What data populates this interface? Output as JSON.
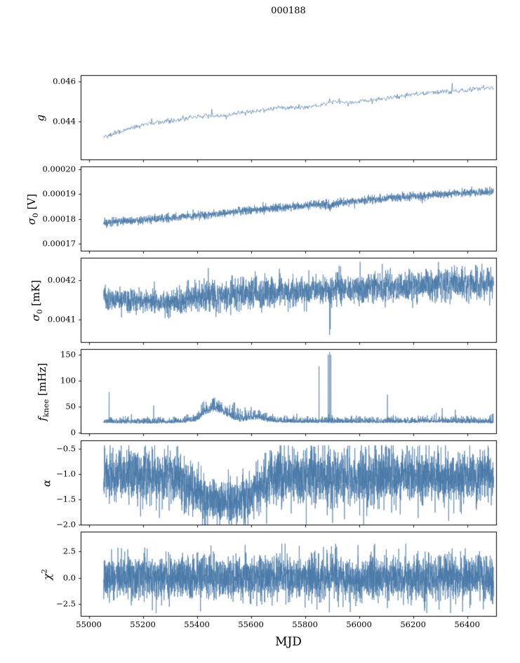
{
  "title": "000188",
  "xlabel": "MJD",
  "line_color": "#4878a8",
  "axis_color": "#000000",
  "x_axis": {
    "lim": [
      54970,
      56510
    ],
    "ticks": [
      {
        "v": 55000,
        "label": "55000"
      },
      {
        "v": 55200,
        "label": "55200"
      },
      {
        "v": 55400,
        "label": "55400"
      },
      {
        "v": 55600,
        "label": "55600"
      },
      {
        "v": 55800,
        "label": "55800"
      },
      {
        "v": 56000,
        "label": "56000"
      },
      {
        "v": 56200,
        "label": "56200"
      },
      {
        "v": 56400,
        "label": "56400"
      }
    ]
  },
  "chart_data": [
    {
      "type": "line",
      "name": "gain",
      "ylabel": {
        "var": "g",
        "sub": "",
        "sup": "",
        "unit": ""
      },
      "ylim": [
        0.0421,
        0.0463
      ],
      "yticks": [
        {
          "v": 0.044,
          "label": "0.044"
        },
        {
          "v": 0.046,
          "label": "0.046"
        }
      ],
      "x_range": [
        55055,
        56498
      ],
      "n_points": 650,
      "seed": 1,
      "mode": "normal",
      "trend": {
        "x": [
          55055,
          55120,
          55200,
          55280,
          55360,
          55430,
          55480,
          55550,
          55620,
          55700,
          55780,
          55860,
          55900,
          55960,
          56040,
          56120,
          56200,
          56280,
          56360,
          56440,
          56498
        ],
        "y": [
          0.04325,
          0.04355,
          0.04385,
          0.044,
          0.04415,
          0.0443,
          0.04425,
          0.0444,
          0.04455,
          0.0447,
          0.0447,
          0.0448,
          0.045,
          0.04495,
          0.04505,
          0.0452,
          0.04535,
          0.04545,
          0.0455,
          0.04565,
          0.0457
        ]
      },
      "noise": 6e-05,
      "spikes": [
        {
          "x": 55455,
          "y": 0.04462
        },
        {
          "x": 55890,
          "y": 0.04515
        },
        {
          "x": 56345,
          "y": 0.0459
        }
      ]
    },
    {
      "type": "line",
      "name": "sigma0_V",
      "ylabel": {
        "var": "σ",
        "sub": "0",
        "sup": "",
        "unit": " [V]"
      },
      "ylim": [
        0.000167,
        0.000201
      ],
      "yticks": [
        {
          "v": 0.00017,
          "label": "0.00017"
        },
        {
          "v": 0.00018,
          "label": "0.00018"
        },
        {
          "v": 0.00019,
          "label": "0.00019"
        },
        {
          "v": 0.0002,
          "label": "0.00020"
        }
      ],
      "x_range": [
        55055,
        56498
      ],
      "n_points": 2600,
      "seed": 2,
      "mode": "normal",
      "trend": {
        "x": [
          55055,
          55150,
          55250,
          55350,
          55450,
          55550,
          55650,
          55750,
          55850,
          55880,
          55895,
          55910,
          55960,
          56050,
          56150,
          56250,
          56350,
          56450,
          56498
        ],
        "y": [
          0.0001785,
          0.0001793,
          0.00018,
          0.0001808,
          0.0001818,
          0.000183,
          0.000184,
          0.0001849,
          0.0001858,
          0.000186,
          0.0001846,
          0.0001862,
          0.0001868,
          0.0001877,
          0.0001886,
          0.0001895,
          0.0001902,
          0.0001907,
          0.0001908
        ]
      },
      "noise": 8e-07,
      "spikes": [
        {
          "x": 55893,
          "y": 0.000183
        }
      ]
    },
    {
      "type": "line",
      "name": "sigma0_mK",
      "ylabel": {
        "var": "σ",
        "sub": "0",
        "sup": "",
        "unit": " [mK]"
      },
      "ylim": [
        0.00404,
        0.004257
      ],
      "yticks": [
        {
          "v": 0.0041,
          "label": "0.0041"
        },
        {
          "v": 0.0042,
          "label": "0.0042"
        }
      ],
      "x_range": [
        55055,
        56498
      ],
      "n_points": 2800,
      "seed": 3,
      "mode": "normal",
      "trend": {
        "x": [
          55055,
          55150,
          55250,
          55330,
          55400,
          55450,
          55520,
          55600,
          55680,
          55760,
          55840,
          55900,
          55960,
          56040,
          56120,
          56200,
          56280,
          56360,
          56440,
          56498
        ],
        "y": [
          0.004152,
          0.004148,
          0.004144,
          0.004146,
          0.004158,
          0.00416,
          0.004162,
          0.004168,
          0.00417,
          0.004168,
          0.004172,
          0.004176,
          0.004178,
          0.004182,
          0.004184,
          0.004186,
          0.004188,
          0.00419,
          0.004192,
          0.004194
        ]
      },
      "noise": {
        "x": [
          55055,
          55350,
          55420,
          55650,
          55700,
          56000,
          56200,
          56498
        ],
        "amp": [
          1.5e-05,
          1.6e-05,
          2.1e-05,
          2.1e-05,
          1.8e-05,
          1.9e-05,
          2e-05,
          2.1e-05
        ]
      },
      "spikes": [
        {
          "x": 55891,
          "y": 0.00406
        },
        {
          "x": 55894,
          "y": 0.004075
        }
      ]
    },
    {
      "type": "line",
      "name": "f_knee",
      "ylabel": {
        "var": "f",
        "sub": "knee",
        "sup": "",
        "unit": " [mHz]"
      },
      "ylim": [
        -3,
        161
      ],
      "yticks": [
        {
          "v": 0,
          "label": "0"
        },
        {
          "v": 50,
          "label": "50"
        },
        {
          "v": 100,
          "label": "100"
        },
        {
          "v": 150,
          "label": "150"
        }
      ],
      "x_range": [
        55055,
        56498
      ],
      "n_points": 2800,
      "seed": 4,
      "mode": "positive",
      "trend": {
        "x": [
          55055,
          55150,
          55250,
          55350,
          55400,
          55430,
          55460,
          55490,
          55520,
          55560,
          55600,
          55630,
          55660,
          55700,
          55800,
          55900,
          56000,
          56100,
          56200,
          56300,
          56400,
          56498
        ],
        "y": [
          21,
          20,
          20,
          21,
          26,
          40,
          48,
          44,
          34,
          26,
          28,
          30,
          24,
          22,
          21,
          21,
          21,
          21,
          21,
          22,
          21,
          21
        ]
      },
      "noise": {
        "x": [
          55055,
          55350,
          55420,
          55460,
          55520,
          55600,
          55650,
          55700,
          56000,
          56498
        ],
        "amp": [
          5,
          5,
          9,
          14,
          11,
          9,
          7,
          5,
          5,
          6
        ]
      },
      "spikes": [
        {
          "x": 55075,
          "y": 78
        },
        {
          "x": 55240,
          "y": 52
        },
        {
          "x": 55852,
          "y": 128
        },
        {
          "x": 55886,
          "y": 150
        },
        {
          "x": 55891,
          "y": 155
        },
        {
          "x": 55896,
          "y": 150
        },
        {
          "x": 56105,
          "y": 73
        },
        {
          "x": 56308,
          "y": 47
        },
        {
          "x": 56356,
          "y": 44
        }
      ]
    },
    {
      "type": "line",
      "name": "alpha",
      "ylabel": {
        "var": "α",
        "sub": "",
        "sup": "",
        "unit": ""
      },
      "ylim": [
        -2.02,
        -0.34
      ],
      "yticks": [
        {
          "v": -0.5,
          "label": "−0.5"
        },
        {
          "v": -1.0,
          "label": "−1.0"
        },
        {
          "v": -1.5,
          "label": "−1.5"
        },
        {
          "v": -2.0,
          "label": "−2.0"
        }
      ],
      "x_range": [
        55055,
        56498
      ],
      "n_points": 3500,
      "seed": 5,
      "mode": "normal",
      "trend": {
        "x": [
          55055,
          55150,
          55250,
          55330,
          55390,
          55440,
          55490,
          55540,
          55590,
          55640,
          55690,
          55760,
          55850,
          55950,
          56050,
          56150,
          56250,
          56350,
          56440,
          56498
        ],
        "y": [
          -1.03,
          -1.05,
          -1.06,
          -1.12,
          -1.3,
          -1.5,
          -1.58,
          -1.55,
          -1.45,
          -1.22,
          -1.07,
          -1.05,
          -1.05,
          -1.05,
          -1.04,
          -1.05,
          -1.05,
          -1.05,
          -1.04,
          -1.03
        ]
      },
      "noise": {
        "x": [
          55055,
          55350,
          55430,
          55600,
          55680,
          56498
        ],
        "amp": [
          0.26,
          0.26,
          0.22,
          0.24,
          0.27,
          0.27
        ]
      },
      "clip": [
        -2.01,
        -0.44
      ],
      "spikes": [
        {
          "x": 55658,
          "y": -1.99
        },
        {
          "x": 55902,
          "y": -1.97
        },
        {
          "x": 56332,
          "y": -1.93
        }
      ]
    },
    {
      "type": "line",
      "name": "chi2",
      "ylabel": {
        "var": "χ",
        "sub": "",
        "sup": "2",
        "unit": ""
      },
      "ylim": [
        -3.7,
        4.4
      ],
      "yticks": [
        {
          "v": -2.5,
          "label": "−2.5"
        },
        {
          "v": 0,
          "label": "0.0"
        },
        {
          "v": 2.5,
          "label": "2.5"
        }
      ],
      "x_range": [
        55055,
        56498
      ],
      "n_points": 3500,
      "seed": 6,
      "mode": "normal",
      "trend": {
        "x": [
          55055,
          56498
        ],
        "y": [
          0,
          0
        ]
      },
      "noise": 1.05,
      "clip": [
        -3.35,
        3.25
      ],
      "spikes": [
        {
          "x": 55452,
          "y": 3.1
        },
        {
          "x": 55890,
          "y": -3.3
        },
        {
          "x": 55898,
          "y": 3.0
        },
        {
          "x": 56460,
          "y": -3.0
        }
      ]
    }
  ]
}
